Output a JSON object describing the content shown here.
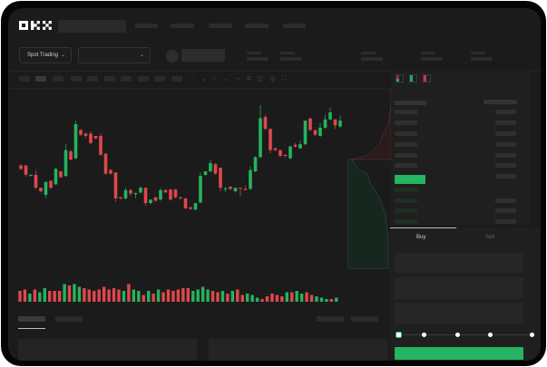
{
  "header": {
    "logo": "OKX"
  },
  "toolbar": {
    "market_selector": "Spot Trading",
    "pair_selector": ""
  },
  "chart_data": {
    "type": "candlestick",
    "title": "",
    "colors": {
      "up": "#25b35f",
      "down": "#e0474c"
    },
    "candles": [
      [
        45,
        42,
        46,
        41
      ],
      [
        45,
        37,
        45,
        35
      ],
      [
        36,
        37,
        37,
        36
      ],
      [
        37,
        26,
        41,
        25
      ],
      [
        26,
        23,
        26,
        22
      ],
      [
        20,
        31,
        31,
        17
      ],
      [
        32,
        26,
        32,
        25
      ],
      [
        29,
        42,
        43,
        28
      ],
      [
        40,
        35,
        40,
        34
      ],
      [
        36,
        58,
        63,
        35
      ],
      [
        57,
        50,
        58,
        49
      ],
      [
        51,
        80,
        83,
        50
      ],
      [
        75,
        71,
        76,
        70
      ],
      [
        72,
        70,
        73,
        68
      ],
      [
        72,
        64,
        74,
        63
      ],
      [
        70,
        68,
        70,
        67
      ],
      [
        70,
        54,
        72,
        53
      ],
      [
        55,
        38,
        55,
        37
      ],
      [
        41,
        38,
        42,
        37
      ],
      [
        39,
        17,
        39,
        14
      ],
      [
        18,
        17,
        18,
        16
      ],
      [
        17,
        24,
        26,
        16
      ],
      [
        24,
        21,
        25,
        19
      ],
      [
        20.5,
        21.5,
        22,
        17
      ],
      [
        22,
        26,
        27,
        21
      ],
      [
        26,
        13,
        26,
        11
      ],
      [
        13,
        16,
        16,
        12
      ],
      [
        18,
        15,
        18,
        14
      ],
      [
        16,
        24,
        26,
        15
      ],
      [
        24,
        22,
        25,
        22
      ],
      [
        24.5,
        16,
        25,
        15
      ],
      [
        24.5,
        18,
        25,
        17
      ],
      [
        18,
        17,
        18,
        16
      ],
      [
        17,
        8.5,
        17,
        8
      ],
      [
        9.5,
        8,
        9.5,
        7.5
      ],
      [
        7.5,
        13,
        13,
        7
      ],
      [
        13.5,
        36,
        39,
        13
      ],
      [
        37,
        40,
        40,
        36
      ],
      [
        40,
        47,
        50,
        39
      ],
      [
        46,
        38,
        47,
        37
      ],
      [
        43,
        26,
        43,
        23
      ],
      [
        25,
        25.5,
        27,
        22
      ],
      [
        27,
        25,
        27,
        24
      ],
      [
        23,
        26,
        26,
        22
      ],
      [
        26,
        25.5,
        26,
        19
      ],
      [
        25,
        24,
        28,
        24
      ],
      [
        25,
        41,
        44,
        24
      ],
      [
        40,
        52,
        53,
        39
      ],
      [
        52,
        85,
        96,
        51
      ],
      [
        86,
        76,
        88,
        75
      ],
      [
        76,
        58,
        76,
        55
      ],
      [
        59.5,
        58,
        60,
        57
      ],
      [
        58,
        53,
        58,
        52
      ],
      [
        54,
        53,
        54,
        52
      ],
      [
        51,
        61,
        62,
        50
      ],
      [
        62.5,
        61,
        64,
        60
      ],
      [
        59.5,
        63,
        66,
        59
      ],
      [
        63,
        83,
        83,
        62
      ],
      [
        85,
        75,
        85,
        74
      ],
      [
        75,
        71,
        75,
        70
      ],
      [
        70,
        77,
        81,
        69
      ],
      [
        77,
        84,
        88,
        76
      ],
      [
        84,
        90,
        94,
        83
      ],
      [
        84,
        79,
        84,
        76
      ],
      [
        78,
        83,
        87,
        77
      ]
    ],
    "volume": [
      8,
      9,
      6,
      9,
      7,
      10,
      8,
      8,
      8,
      13,
      12,
      13,
      11,
      10,
      9,
      8,
      9,
      11,
      9,
      10,
      9,
      8,
      13,
      9,
      8,
      5,
      8,
      6,
      9,
      7,
      9,
      8,
      9,
      10,
      10,
      8,
      9,
      11,
      9,
      8,
      7,
      8,
      6,
      8,
      9,
      5,
      6,
      5,
      3,
      2,
      4,
      6,
      5,
      4,
      7,
      7,
      8,
      6,
      7,
      5,
      4,
      3,
      2,
      2,
      3
    ],
    "volume_up": [
      0,
      0,
      1,
      0,
      1,
      1,
      0,
      0,
      0,
      1,
      0,
      1,
      1,
      0,
      0,
      0,
      0,
      0,
      0,
      0,
      0,
      1,
      0,
      1,
      1,
      0,
      1,
      0,
      1,
      0,
      0,
      0,
      0,
      0,
      0,
      1,
      1,
      1,
      1,
      0,
      0,
      1,
      0,
      1,
      0,
      0,
      1,
      1,
      1,
      0,
      0,
      0,
      0,
      0,
      1,
      0,
      1,
      1,
      0,
      0,
      1,
      1,
      1,
      0,
      1
    ]
  },
  "trade": {
    "buy_tab": "Buy",
    "sell_tab": "Sell",
    "slider_percent": 0
  }
}
